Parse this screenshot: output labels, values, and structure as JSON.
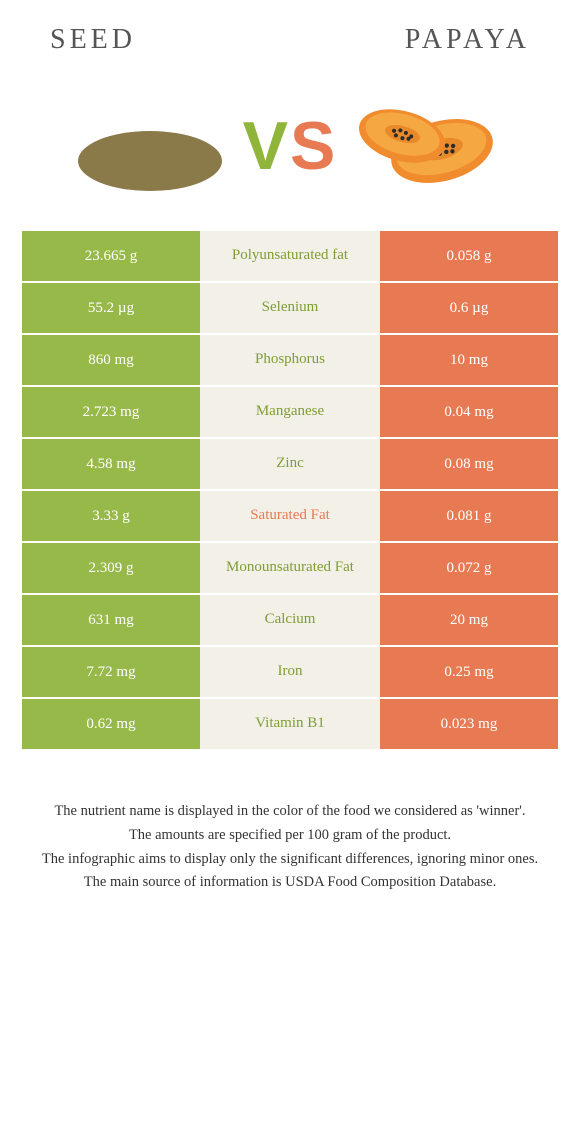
{
  "header": {
    "left_title": "Seed",
    "right_title": "Papaya"
  },
  "vs": {
    "v": "V",
    "s": "S"
  },
  "colors": {
    "seed": "#97b94a",
    "papaya": "#e77a52",
    "mid_bg": "#f3f0e8",
    "winner_seed_text": "#7e9e35",
    "winner_papaya_text": "#e77a52"
  },
  "table": {
    "rows": [
      {
        "left": "23.665 g",
        "label": "Polyunsaturated fat",
        "right": "0.058 g",
        "winner": "seed"
      },
      {
        "left": "55.2 µg",
        "label": "Selenium",
        "right": "0.6 µg",
        "winner": "seed"
      },
      {
        "left": "860 mg",
        "label": "Phosphorus",
        "right": "10 mg",
        "winner": "seed"
      },
      {
        "left": "2.723 mg",
        "label": "Manganese",
        "right": "0.04 mg",
        "winner": "seed"
      },
      {
        "left": "4.58 mg",
        "label": "Zinc",
        "right": "0.08 mg",
        "winner": "seed"
      },
      {
        "left": "3.33 g",
        "label": "Saturated Fat",
        "right": "0.081 g",
        "winner": "papaya"
      },
      {
        "left": "2.309 g",
        "label": "Monounsaturated Fat",
        "right": "0.072 g",
        "winner": "seed"
      },
      {
        "left": "631 mg",
        "label": "Calcium",
        "right": "20 mg",
        "winner": "seed"
      },
      {
        "left": "7.72 mg",
        "label": "Iron",
        "right": "0.25 mg",
        "winner": "seed"
      },
      {
        "left": "0.62 mg",
        "label": "Vitamin B1",
        "right": "0.023 mg",
        "winner": "seed"
      }
    ]
  },
  "footnotes": [
    "The nutrient name is displayed in the color of the food we considered as 'winner'.",
    "The amounts are specified per 100 gram of the product.",
    "The infographic aims to display only the significant differences, ignoring minor ones.",
    "The main source of information is USDA Food Composition Database."
  ]
}
